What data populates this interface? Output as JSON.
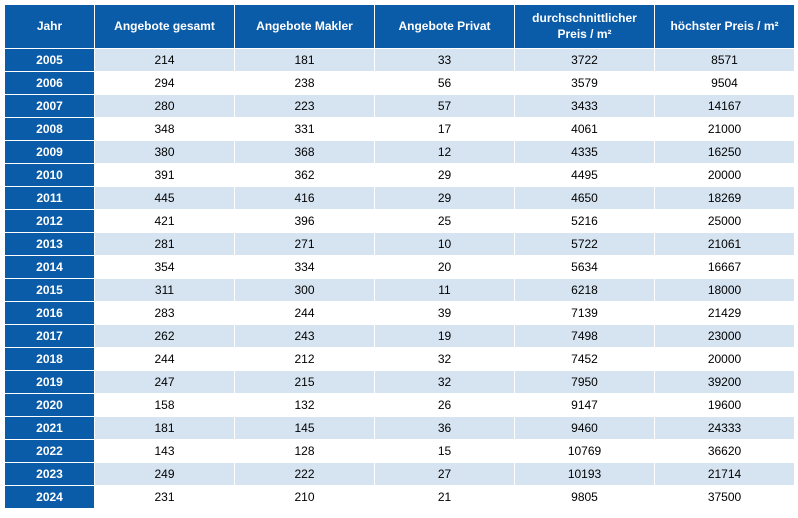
{
  "table": {
    "header_bg": "#0b5ca8",
    "year_col_bg": "#0b5ca8",
    "row_even_bg": "#d6e4f2",
    "row_odd_bg": "#ffffff",
    "text_color": "#000000",
    "header_text_color": "#ffffff",
    "columns": [
      "Jahr",
      "Angebote gesamt",
      "Angebote Makler",
      "Angebote Privat",
      "durchschnittlicher Preis / m²",
      "höchster Preis / m²"
    ],
    "rows": [
      [
        "2005",
        "214",
        "181",
        "33",
        "3722",
        "8571"
      ],
      [
        "2006",
        "294",
        "238",
        "56",
        "3579",
        "9504"
      ],
      [
        "2007",
        "280",
        "223",
        "57",
        "3433",
        "14167"
      ],
      [
        "2008",
        "348",
        "331",
        "17",
        "4061",
        "21000"
      ],
      [
        "2009",
        "380",
        "368",
        "12",
        "4335",
        "16250"
      ],
      [
        "2010",
        "391",
        "362",
        "29",
        "4495",
        "20000"
      ],
      [
        "2011",
        "445",
        "416",
        "29",
        "4650",
        "18269"
      ],
      [
        "2012",
        "421",
        "396",
        "25",
        "5216",
        "25000"
      ],
      [
        "2013",
        "281",
        "271",
        "10",
        "5722",
        "21061"
      ],
      [
        "2014",
        "354",
        "334",
        "20",
        "5634",
        "16667"
      ],
      [
        "2015",
        "311",
        "300",
        "11",
        "6218",
        "18000"
      ],
      [
        "2016",
        "283",
        "244",
        "39",
        "7139",
        "21429"
      ],
      [
        "2017",
        "262",
        "243",
        "19",
        "7498",
        "23000"
      ],
      [
        "2018",
        "244",
        "212",
        "32",
        "7452",
        "20000"
      ],
      [
        "2019",
        "247",
        "215",
        "32",
        "7950",
        "39200"
      ],
      [
        "2020",
        "158",
        "132",
        "26",
        "9147",
        "19600"
      ],
      [
        "2021",
        "181",
        "145",
        "36",
        "9460",
        "24333"
      ],
      [
        "2022",
        "143",
        "128",
        "15",
        "10769",
        "36620"
      ],
      [
        "2023",
        "249",
        "222",
        "27",
        "10193",
        "21714"
      ],
      [
        "2024",
        "231",
        "210",
        "21",
        "9805",
        "37500"
      ]
    ]
  }
}
